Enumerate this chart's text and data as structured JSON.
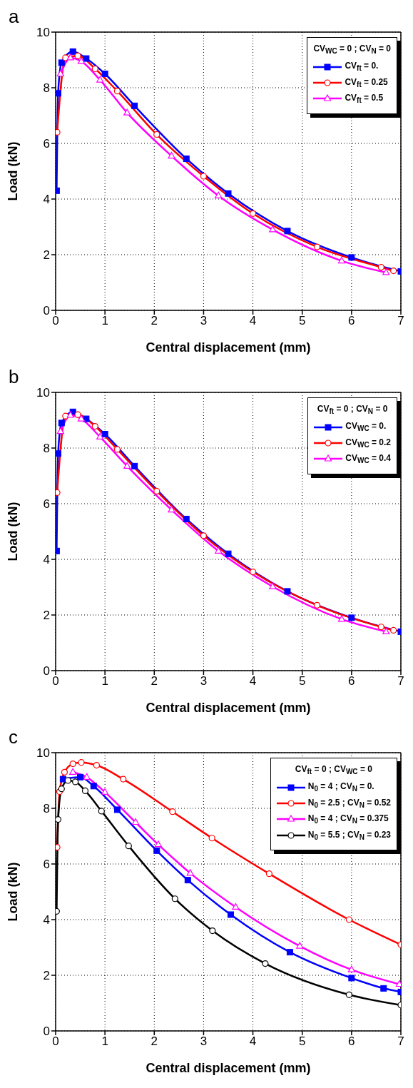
{
  "chart_data": [
    {
      "type": "line",
      "title": "a",
      "xlabel": "Central displacement (mm)",
      "ylabel": "Load (kN)",
      "legend_title": "CV$_{WC}$ = 0 ; CV$_{N}$ = 0",
      "xlim": [
        0,
        7
      ],
      "xticks": [
        0,
        1,
        2,
        3,
        4,
        5,
        6,
        7
      ],
      "ylim": [
        0,
        10
      ],
      "yticks": [
        0,
        2,
        4,
        6,
        8,
        10
      ],
      "grid": true,
      "legend": "top right",
      "line_style": "solid",
      "series": [
        {
          "name": "CV$_{ft}$ = 0.",
          "color": "#0000ff",
          "marker": "square",
          "x": [
            0.02,
            0.05,
            0.12,
            0.35,
            0.62,
            1.0,
            1.6,
            2.65,
            3.5,
            4.7,
            6.0,
            7.0
          ],
          "values": [
            4.3,
            7.8,
            8.9,
            9.3,
            9.05,
            8.5,
            7.35,
            5.45,
            4.2,
            2.85,
            1.9,
            1.4
          ]
        },
        {
          "name": "CV$_{ft}$ = 0.25",
          "color": "#ff0000",
          "marker": "circle",
          "x": [
            0.03,
            0.2,
            0.45,
            0.8,
            1.25,
            2.05,
            3.0,
            4.0,
            5.3,
            6.6,
            6.85
          ],
          "values": [
            6.4,
            9.08,
            9.15,
            8.68,
            7.88,
            6.32,
            4.82,
            3.48,
            2.28,
            1.55,
            1.42
          ]
        },
        {
          "name": "CV$_{ft}$ = 0.5",
          "color": "#ff00ff",
          "marker": "triangle",
          "x": [
            0.1,
            0.3,
            0.52,
            0.9,
            1.45,
            2.35,
            3.3,
            4.4,
            5.8,
            6.7
          ],
          "values": [
            8.5,
            9.08,
            8.95,
            8.28,
            7.1,
            5.55,
            4.12,
            2.9,
            1.78,
            1.36
          ]
        }
      ]
    },
    {
      "type": "line",
      "title": "b",
      "xlabel": "Central displacement (mm)",
      "ylabel": "Load (kN)",
      "legend_title": "CV$_{ft}$ = 0 ; CV$_{N}$ = 0",
      "xlim": [
        0,
        7
      ],
      "xticks": [
        0,
        1,
        2,
        3,
        4,
        5,
        6,
        7
      ],
      "ylim": [
        0,
        10
      ],
      "yticks": [
        0,
        2,
        4,
        6,
        8,
        10
      ],
      "grid": true,
      "legend": "top right",
      "line_style": "solid",
      "series": [
        {
          "name": "CV$_{WC}$ = 0.",
          "color": "#0000ff",
          "marker": "square",
          "x": [
            0.02,
            0.05,
            0.12,
            0.35,
            0.62,
            1.0,
            1.6,
            2.65,
            3.5,
            4.7,
            6.0,
            7.0
          ],
          "values": [
            4.3,
            7.8,
            8.9,
            9.3,
            9.05,
            8.5,
            7.35,
            5.45,
            4.2,
            2.85,
            1.9,
            1.4
          ]
        },
        {
          "name": "CV$_{WC}$ = 0.2",
          "color": "#ff0000",
          "marker": "circle",
          "x": [
            0.03,
            0.2,
            0.45,
            0.8,
            1.25,
            2.05,
            3.0,
            4.0,
            5.3,
            6.6,
            6.85
          ],
          "values": [
            6.4,
            9.15,
            9.2,
            8.78,
            7.95,
            6.45,
            4.85,
            3.55,
            2.35,
            1.57,
            1.45
          ]
        },
        {
          "name": "CV$_{WC}$ = 0.4",
          "color": "#ff00ff",
          "marker": "triangle",
          "x": [
            0.1,
            0.3,
            0.52,
            0.9,
            1.45,
            2.35,
            3.3,
            4.4,
            5.8,
            6.7
          ],
          "values": [
            8.6,
            9.18,
            9.05,
            8.4,
            7.35,
            5.78,
            4.3,
            3.02,
            1.85,
            1.4
          ]
        }
      ]
    },
    {
      "type": "line",
      "title": "c",
      "xlabel": "Central displacement (mm)",
      "ylabel": "Load (kN)",
      "legend_title": "CV$_{ft}$ = 0 ; CV$_{WC}$ = 0",
      "xlim": [
        0,
        7
      ],
      "xticks": [
        0,
        1,
        2,
        3,
        4,
        5,
        6,
        7
      ],
      "ylim": [
        0,
        10
      ],
      "yticks": [
        0,
        2,
        4,
        6,
        8,
        10
      ],
      "grid": true,
      "legend": "top right",
      "line_style": "solid",
      "series": [
        {
          "name": "N$_{0}$ = 4 ; CV$_{N}$ = 0.",
          "color": "#0000ff",
          "marker": "square",
          "x": [
            0.15,
            0.5,
            0.77,
            1.25,
            2.05,
            2.68,
            3.55,
            4.75,
            6.0,
            6.65,
            7.0
          ],
          "values": [
            9.05,
            9.12,
            8.8,
            7.95,
            6.48,
            5.42,
            4.18,
            2.83,
            1.9,
            1.53,
            1.4
          ]
        },
        {
          "name": "N$_{0}$ = 2.5 ; CV$_{N}$ = 0.52",
          "color": "#ff0000",
          "marker": "circle",
          "x": [
            0.03,
            0.08,
            0.18,
            0.35,
            0.52,
            0.83,
            1.37,
            2.37,
            3.17,
            4.33,
            5.95,
            7.0
          ],
          "values": [
            6.6,
            8.6,
            9.3,
            9.6,
            9.65,
            9.55,
            9.05,
            7.88,
            6.93,
            5.65,
            4.0,
            3.1
          ]
        },
        {
          "name": "N$_{0}$ = 4 ; CV$_{N}$ = 0.375",
          "color": "#ff00ff",
          "marker": "triangle",
          "x": [
            0.35,
            0.63,
            1.0,
            1.62,
            2.08,
            2.73,
            3.65,
            4.95,
            6.0,
            6.97
          ],
          "values": [
            9.3,
            9.12,
            8.58,
            7.5,
            6.7,
            5.67,
            4.45,
            3.05,
            2.2,
            1.68
          ]
        },
        {
          "name": "N$_{0}$ = 5.5 ; CV$_{N}$ = 0.23",
          "color": "#000000",
          "marker": "circle",
          "x": [
            0.02,
            0.05,
            0.12,
            0.25,
            0.4,
            0.6,
            0.93,
            1.48,
            2.42,
            3.18,
            4.25,
            5.95,
            7.0
          ],
          "values": [
            4.3,
            7.6,
            8.7,
            9.0,
            8.95,
            8.63,
            7.9,
            6.65,
            4.75,
            3.6,
            2.42,
            1.3,
            0.93
          ]
        }
      ]
    }
  ]
}
